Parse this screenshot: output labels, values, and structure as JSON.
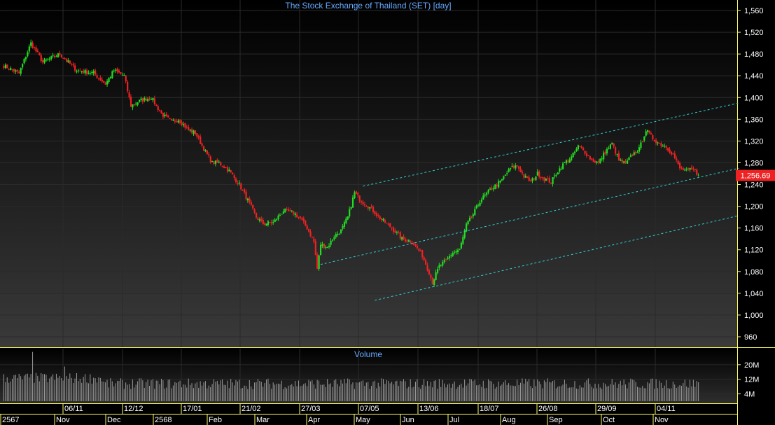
{
  "title": "The Stock Exchange of Thailand (SET) [day]",
  "volume_title": "Volume",
  "last_price_label": "1,256.69",
  "colors": {
    "up": "#22dd22",
    "down": "#ee2222",
    "trend": "#33cccc",
    "title": "#66aaff",
    "axis": "#ffff66",
    "label": "#ffffff",
    "grid": "#2a2a2a",
    "last_price_bg": "#ee2222"
  },
  "chart_data": [
    {
      "type": "candlestick",
      "title": "The Stock Exchange of Thailand (SET) [day]",
      "y_ticks": [
        "1,560",
        "1,520",
        "1,480",
        "1,440",
        "1,400",
        "1,360",
        "1,320",
        "1,280",
        "1,240",
        "1,200",
        "1,160",
        "1,120",
        "1,080",
        "1,040",
        "1,000",
        "960"
      ],
      "ylim": [
        940,
        1580
      ],
      "last_price": 1256.69,
      "date_ticks": [
        "06/11",
        "12/12",
        "17/01",
        "21/02",
        "27/03",
        "07/05",
        "13/06",
        "18/07",
        "26/08",
        "29/09",
        "04/11"
      ],
      "month_labels": [
        "2567",
        "Nov",
        "Dec",
        "2568",
        "Feb",
        "Mar",
        "Apr",
        "May",
        "Jun",
        "Jul",
        "Aug",
        "Sep",
        "Oct",
        "Nov"
      ],
      "close_anchors": [
        {
          "i": 0,
          "v": 1460
        },
        {
          "i": 10,
          "v": 1445
        },
        {
          "i": 17,
          "v": 1500
        },
        {
          "i": 24,
          "v": 1465
        },
        {
          "i": 34,
          "v": 1480
        },
        {
          "i": 44,
          "v": 1450
        },
        {
          "i": 54,
          "v": 1445
        },
        {
          "i": 61,
          "v": 1425
        },
        {
          "i": 66,
          "v": 1450
        },
        {
          "i": 72,
          "v": 1440
        },
        {
          "i": 76,
          "v": 1385
        },
        {
          "i": 82,
          "v": 1395
        },
        {
          "i": 88,
          "v": 1400
        },
        {
          "i": 94,
          "v": 1370
        },
        {
          "i": 100,
          "v": 1355
        },
        {
          "i": 104,
          "v": 1360
        },
        {
          "i": 110,
          "v": 1340
        },
        {
          "i": 114,
          "v": 1335
        },
        {
          "i": 120,
          "v": 1300
        },
        {
          "i": 124,
          "v": 1280
        },
        {
          "i": 128,
          "v": 1280
        },
        {
          "i": 134,
          "v": 1265
        },
        {
          "i": 140,
          "v": 1240
        },
        {
          "i": 146,
          "v": 1205
        },
        {
          "i": 150,
          "v": 1180
        },
        {
          "i": 154,
          "v": 1168
        },
        {
          "i": 160,
          "v": 1170
        },
        {
          "i": 166,
          "v": 1192
        },
        {
          "i": 172,
          "v": 1188
        },
        {
          "i": 176,
          "v": 1178
        },
        {
          "i": 180,
          "v": 1160
        },
        {
          "i": 184,
          "v": 1135
        },
        {
          "i": 186,
          "v": 1085
        },
        {
          "i": 188,
          "v": 1130
        },
        {
          "i": 192,
          "v": 1125
        },
        {
          "i": 196,
          "v": 1145
        },
        {
          "i": 200,
          "v": 1155
        },
        {
          "i": 204,
          "v": 1180
        },
        {
          "i": 208,
          "v": 1225
        },
        {
          "i": 212,
          "v": 1210
        },
        {
          "i": 218,
          "v": 1195
        },
        {
          "i": 224,
          "v": 1175
        },
        {
          "i": 230,
          "v": 1160
        },
        {
          "i": 236,
          "v": 1140
        },
        {
          "i": 242,
          "v": 1135
        },
        {
          "i": 248,
          "v": 1110
        },
        {
          "i": 252,
          "v": 1078
        },
        {
          "i": 254,
          "v": 1060
        },
        {
          "i": 258,
          "v": 1090
        },
        {
          "i": 262,
          "v": 1100
        },
        {
          "i": 266,
          "v": 1115
        },
        {
          "i": 270,
          "v": 1120
        },
        {
          "i": 274,
          "v": 1165
        },
        {
          "i": 278,
          "v": 1185
        },
        {
          "i": 282,
          "v": 1210
        },
        {
          "i": 288,
          "v": 1230
        },
        {
          "i": 294,
          "v": 1245
        },
        {
          "i": 300,
          "v": 1270
        },
        {
          "i": 304,
          "v": 1275
        },
        {
          "i": 308,
          "v": 1255
        },
        {
          "i": 312,
          "v": 1245
        },
        {
          "i": 316,
          "v": 1260
        },
        {
          "i": 320,
          "v": 1250
        },
        {
          "i": 324,
          "v": 1245
        },
        {
          "i": 328,
          "v": 1265
        },
        {
          "i": 332,
          "v": 1280
        },
        {
          "i": 336,
          "v": 1290
        },
        {
          "i": 340,
          "v": 1310
        },
        {
          "i": 344,
          "v": 1300
        },
        {
          "i": 348,
          "v": 1285
        },
        {
          "i": 352,
          "v": 1280
        },
        {
          "i": 356,
          "v": 1300
        },
        {
          "i": 360,
          "v": 1315
        },
        {
          "i": 364,
          "v": 1285
        },
        {
          "i": 368,
          "v": 1278
        },
        {
          "i": 372,
          "v": 1295
        },
        {
          "i": 376,
          "v": 1305
        },
        {
          "i": 380,
          "v": 1340
        },
        {
          "i": 384,
          "v": 1325
        },
        {
          "i": 388,
          "v": 1315
        },
        {
          "i": 392,
          "v": 1310
        },
        {
          "i": 396,
          "v": 1295
        },
        {
          "i": 400,
          "v": 1270
        },
        {
          "i": 404,
          "v": 1265
        },
        {
          "i": 408,
          "v": 1268
        },
        {
          "i": 411,
          "v": 1256.69
        }
      ],
      "trend_lines": [
        {
          "from": [
            188,
            1093
          ],
          "to": [
            435,
            1270
          ]
        },
        {
          "from": [
            213,
            1237
          ],
          "to": [
            435,
            1390
          ]
        },
        {
          "from": [
            220,
            1027
          ],
          "to": [
            435,
            1183
          ]
        }
      ]
    },
    {
      "type": "bar",
      "title": "Volume",
      "y_ticks": [
        "20M",
        "12M",
        "4M"
      ],
      "ylim": [
        0,
        28
      ],
      "base_volume": 9,
      "spikes": [
        {
          "i": 18,
          "v": 27
        },
        {
          "i": 37,
          "v": 19
        }
      ]
    }
  ]
}
